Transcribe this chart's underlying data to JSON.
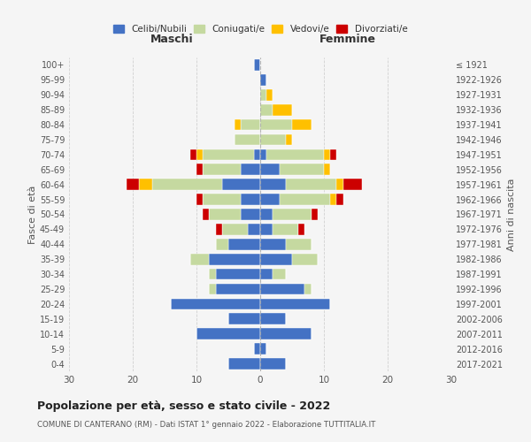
{
  "age_groups": [
    "0-4",
    "5-9",
    "10-14",
    "15-19",
    "20-24",
    "25-29",
    "30-34",
    "35-39",
    "40-44",
    "45-49",
    "50-54",
    "55-59",
    "60-64",
    "65-69",
    "70-74",
    "75-79",
    "80-84",
    "85-89",
    "90-94",
    "95-99",
    "100+"
  ],
  "birth_years": [
    "2017-2021",
    "2012-2016",
    "2007-2011",
    "2002-2006",
    "1997-2001",
    "1992-1996",
    "1987-1991",
    "1982-1986",
    "1977-1981",
    "1972-1976",
    "1967-1971",
    "1962-1966",
    "1957-1961",
    "1952-1956",
    "1947-1951",
    "1942-1946",
    "1937-1941",
    "1932-1936",
    "1927-1931",
    "1922-1926",
    "≤ 1921"
  ],
  "males": {
    "celibe": [
      5,
      1,
      10,
      5,
      14,
      7,
      7,
      8,
      5,
      2,
      3,
      3,
      6,
      3,
      1,
      0,
      0,
      0,
      0,
      0,
      1
    ],
    "coniugato": [
      0,
      0,
      0,
      0,
      0,
      1,
      1,
      3,
      2,
      4,
      5,
      6,
      11,
      6,
      8,
      4,
      3,
      0,
      0,
      0,
      0
    ],
    "vedovo": [
      0,
      0,
      0,
      0,
      0,
      0,
      0,
      0,
      0,
      0,
      0,
      0,
      2,
      0,
      1,
      0,
      1,
      0,
      0,
      0,
      0
    ],
    "divorziato": [
      0,
      0,
      0,
      0,
      0,
      0,
      0,
      0,
      0,
      1,
      1,
      1,
      2,
      1,
      1,
      0,
      0,
      0,
      0,
      0,
      0
    ]
  },
  "females": {
    "nubile": [
      4,
      1,
      8,
      4,
      11,
      7,
      2,
      5,
      4,
      2,
      2,
      3,
      4,
      3,
      1,
      0,
      0,
      0,
      0,
      1,
      0
    ],
    "coniugata": [
      0,
      0,
      0,
      0,
      0,
      1,
      2,
      4,
      4,
      4,
      6,
      8,
      8,
      7,
      9,
      4,
      5,
      2,
      1,
      0,
      0
    ],
    "vedova": [
      0,
      0,
      0,
      0,
      0,
      0,
      0,
      0,
      0,
      0,
      0,
      1,
      1,
      1,
      1,
      1,
      3,
      3,
      1,
      0,
      0
    ],
    "divorziata": [
      0,
      0,
      0,
      0,
      0,
      0,
      0,
      0,
      0,
      1,
      1,
      1,
      3,
      0,
      1,
      0,
      0,
      0,
      0,
      0,
      0
    ]
  },
  "colors": {
    "celibe": "#4472c4",
    "coniugato": "#c5d9a0",
    "vedovo": "#ffc000",
    "divorziato": "#cc0000"
  },
  "xlim": 30,
  "title": "Popolazione per età, sesso e stato civile - 2022",
  "subtitle": "COMUNE DI CANTERANO (RM) - Dati ISTAT 1° gennaio 2022 - Elaborazione TUTTITALIA.IT",
  "ylabel_left": "Fasce di età",
  "ylabel_right": "Anni di nascita",
  "xlabel_left": "Maschi",
  "xlabel_right": "Femmine",
  "legend_labels": [
    "Celibi/Nubili",
    "Coniugati/e",
    "Vedovi/e",
    "Divorziati/e"
  ],
  "bg_color": "#f5f5f5",
  "grid_color": "#cccccc"
}
